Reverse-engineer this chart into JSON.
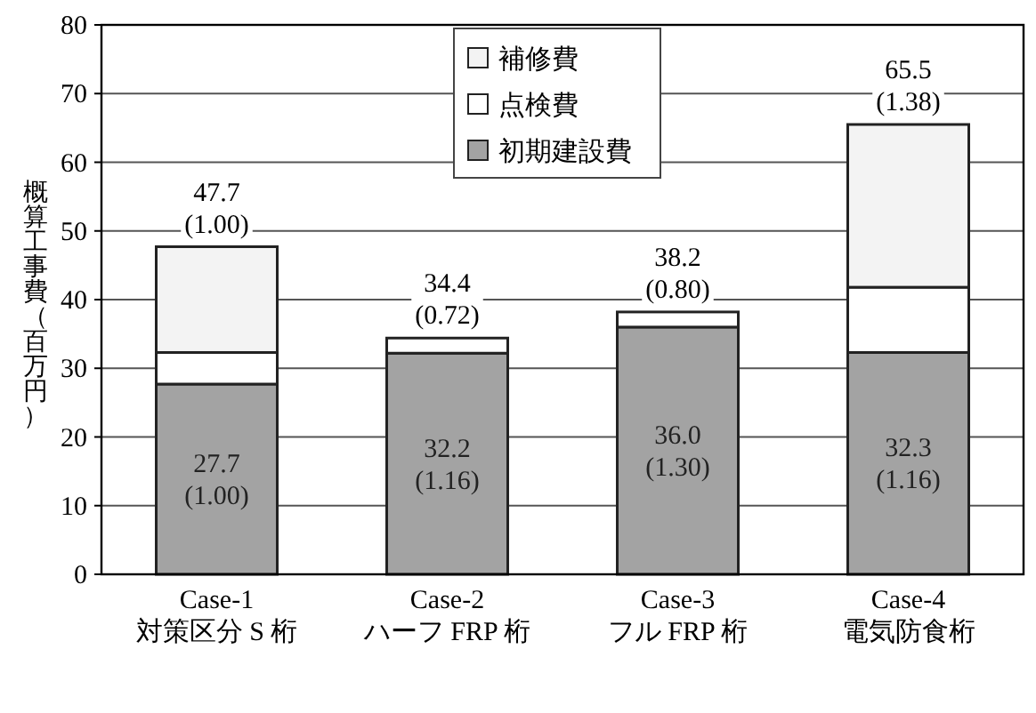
{
  "chart_data": {
    "type": "bar",
    "stacked": true,
    "ylabel": "概算工事費（百万円）",
    "categories": [
      "Case-1\n対策区分 S 桁",
      "Case-2\nハーフ FRP 桁",
      "Case-3\nフル FRP 桁",
      "Case-4\n電気防食桁"
    ],
    "series": [
      {
        "name": "初期建設費",
        "color": "#a3a3a3",
        "values": [
          27.7,
          32.2,
          36.0,
          32.3
        ],
        "value_labels": [
          "27.7\n(1.00)",
          "32.2\n(1.16)",
          "36.0\n(1.30)",
          "32.3\n(1.16)"
        ]
      },
      {
        "name": "点検費",
        "color": "#ffffff",
        "values": [
          4.6,
          2.2,
          2.2,
          9.5
        ]
      },
      {
        "name": "補修費",
        "color": "#f3f3f3",
        "values": [
          15.4,
          0,
          0,
          23.7
        ]
      }
    ],
    "totals": [
      "47.7\n(1.00)",
      "34.4\n(0.72)",
      "38.2\n(0.80)",
      "65.5\n(1.38)"
    ],
    "ylim": [
      0,
      80
    ],
    "yticks": [
      0,
      10,
      20,
      30,
      40,
      50,
      60,
      70,
      80
    ],
    "grid": "y",
    "legend": "top right"
  }
}
